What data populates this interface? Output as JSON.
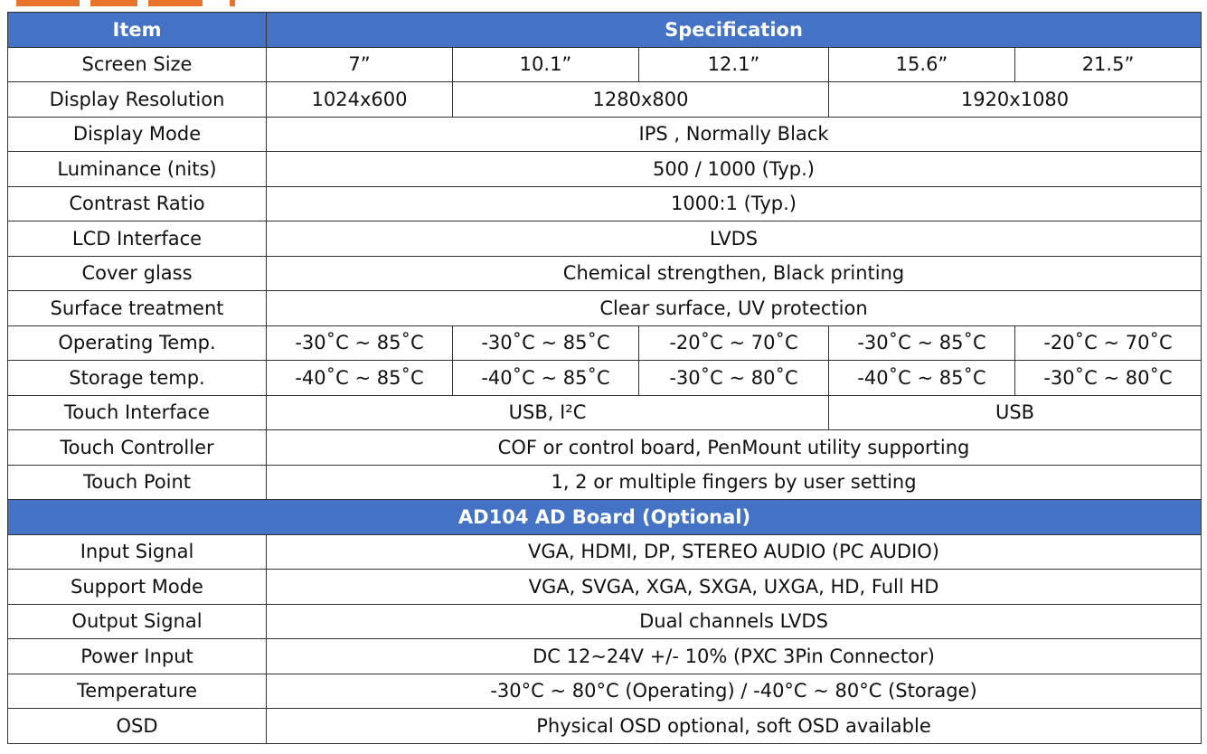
{
  "header": {
    "item": "Item",
    "specification": "Specification"
  },
  "rows": {
    "screen_size": {
      "label": "Screen Size",
      "values": [
        "7”",
        "10.1”",
        "12.1”",
        "15.6”",
        "21.5”"
      ]
    },
    "display_resolution": {
      "label": "Display Resolution",
      "v1": "1024x600",
      "v2": "1280x800",
      "v3": "1920x1080"
    },
    "display_mode": {
      "label": "Display Mode",
      "value": "IPS , Normally Black"
    },
    "luminance": {
      "label": "Luminance (nits)",
      "value": "500 / 1000 (Typ.)"
    },
    "contrast": {
      "label": "Contrast Ratio",
      "value": "1000:1 (Typ.)"
    },
    "lcd_interface": {
      "label": "LCD Interface",
      "value": "LVDS"
    },
    "cover_glass": {
      "label": "Cover glass",
      "value": "Chemical strengthen, Black printing"
    },
    "surface": {
      "label": "Surface treatment",
      "value": "Clear surface, UV protection"
    },
    "operating_temp": {
      "label": "Operating Temp.",
      "values": [
        "-30˚C ~ 85˚C",
        "-30˚C ~ 85˚C",
        "-20˚C ~ 70˚C",
        "-30˚C ~ 85˚C",
        "-20˚C ~ 70˚C"
      ]
    },
    "storage_temp": {
      "label": "Storage temp.",
      "values": [
        "-40˚C ~ 85˚C",
        "-40˚C ~ 85˚C",
        "-30˚C ~ 80˚C",
        "-40˚C ~ 85˚C",
        "-30˚C ~ 80˚C"
      ]
    },
    "touch_interface": {
      "label": "Touch Interface",
      "v1": "USB, I²C",
      "v2": "USB"
    },
    "touch_controller": {
      "label": "Touch Controller",
      "value": "COF or control board, PenMount utility supporting"
    },
    "touch_point": {
      "label": "Touch Point",
      "value": "1, 2 or multiple fingers by user setting"
    }
  },
  "section_title": "AD104 AD Board (Optional)",
  "board": {
    "input_signal": {
      "label": "Input Signal",
      "value": "VGA, HDMI, DP, STEREO AUDIO (PC AUDIO)"
    },
    "support_mode": {
      "label": "Support Mode",
      "value": "VGA, SVGA, XGA, SXGA, UXGA, HD, Full HD"
    },
    "output_signal": {
      "label": "Output Signal",
      "value": "Dual channels LVDS"
    },
    "power_input": {
      "label": "Power Input",
      "value": "DC 12~24V +/- 10% (PXC 3Pin Connector)"
    },
    "temperature": {
      "label": "Temperature",
      "value": "-30°C ~ 80°C (Operating) / -40°C ~ 80°C (Storage)"
    },
    "osd": {
      "label": "OSD",
      "value": "Physical OSD optional, soft OSD available"
    }
  },
  "colors": {
    "header_bg": "#4472c4",
    "accent_orange": "#e8742b"
  }
}
